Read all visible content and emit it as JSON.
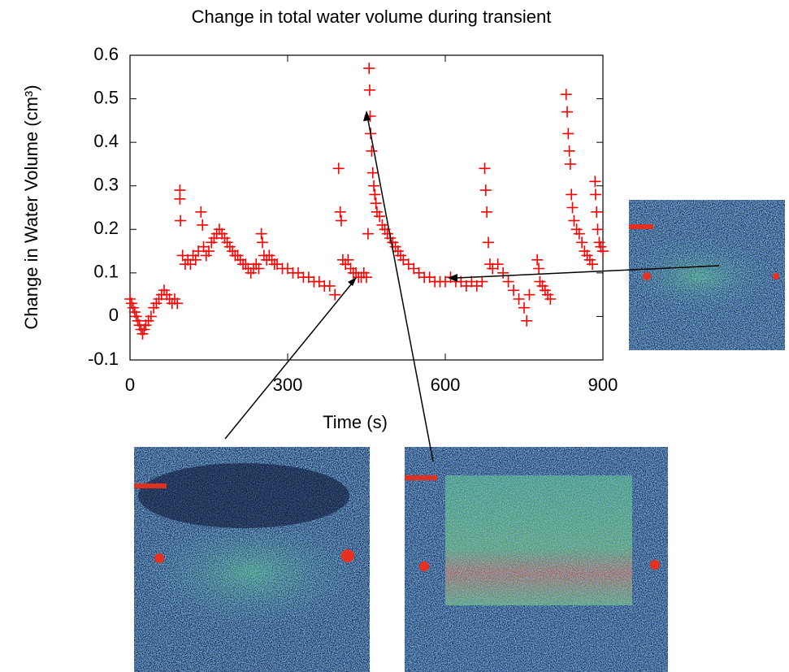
{
  "chart_data": {
    "type": "scatter",
    "title": "Change in total water volume during transient",
    "xlabel": "Time (s)",
    "ylabel": "Change in Water Volume (cm³)",
    "color": "#ff0000",
    "marker": "+",
    "xlim": [
      0,
      900
    ],
    "ylim": [
      -0.1,
      0.6
    ],
    "xticks": [
      0,
      300,
      600,
      900
    ],
    "yticks": [
      -0.1,
      0,
      0.1,
      0.2,
      0.3,
      0.4,
      0.5,
      0.6
    ],
    "x": [
      0,
      3,
      6,
      9,
      12,
      15,
      18,
      21,
      24,
      27,
      30,
      35,
      40,
      45,
      50,
      55,
      60,
      65,
      70,
      75,
      80,
      85,
      90,
      95,
      95,
      96,
      100,
      105,
      110,
      115,
      120,
      125,
      130,
      135,
      138,
      140,
      145,
      150,
      155,
      160,
      165,
      170,
      175,
      180,
      185,
      190,
      195,
      200,
      205,
      210,
      215,
      220,
      225,
      230,
      235,
      240,
      245,
      250,
      252,
      255,
      260,
      265,
      270,
      275,
      280,
      290,
      300,
      310,
      320,
      330,
      340,
      350,
      360,
      370,
      380,
      390,
      397,
      400,
      402,
      405,
      410,
      415,
      420,
      425,
      430,
      435,
      440,
      445,
      450,
      453,
      455,
      456,
      457,
      458,
      460,
      462,
      464,
      466,
      468,
      470,
      475,
      480,
      485,
      490,
      495,
      500,
      505,
      510,
      515,
      520,
      530,
      540,
      550,
      560,
      570,
      580,
      590,
      600,
      610,
      620,
      630,
      640,
      650,
      660,
      670,
      675,
      677,
      679,
      682,
      685,
      690,
      700,
      710,
      720,
      730,
      740,
      750,
      755,
      760,
      775,
      778,
      780,
      785,
      790,
      795,
      800,
      830,
      832,
      834,
      836,
      838,
      840,
      842,
      845,
      850,
      855,
      860,
      865,
      870,
      875,
      880,
      885,
      886,
      888,
      890,
      893,
      896,
      900
    ],
    "values": [
      0.04,
      0.03,
      0.02,
      0.01,
      0.0,
      -0.01,
      -0.02,
      -0.03,
      -0.04,
      -0.03,
      -0.02,
      -0.01,
      0.0,
      0.02,
      0.03,
      0.04,
      0.05,
      0.06,
      0.05,
      0.04,
      0.03,
      0.04,
      0.03,
      0.29,
      0.27,
      0.22,
      0.14,
      0.12,
      0.13,
      0.12,
      0.14,
      0.13,
      0.15,
      0.24,
      0.21,
      0.16,
      0.14,
      0.15,
      0.17,
      0.18,
      0.19,
      0.2,
      0.19,
      0.18,
      0.17,
      0.16,
      0.15,
      0.14,
      0.14,
      0.13,
      0.12,
      0.12,
      0.11,
      0.1,
      0.11,
      0.12,
      0.11,
      0.19,
      0.17,
      0.14,
      0.13,
      0.14,
      0.13,
      0.12,
      0.12,
      0.11,
      0.11,
      0.1,
      0.1,
      0.09,
      0.09,
      0.08,
      0.08,
      0.07,
      0.07,
      0.05,
      0.34,
      0.24,
      0.22,
      0.13,
      0.12,
      0.13,
      0.11,
      0.1,
      0.1,
      0.09,
      0.09,
      0.1,
      0.09,
      0.19,
      0.57,
      0.52,
      0.46,
      0.42,
      0.38,
      0.33,
      0.3,
      0.28,
      0.26,
      0.24,
      0.23,
      0.21,
      0.2,
      0.19,
      0.18,
      0.17,
      0.16,
      0.15,
      0.14,
      0.13,
      0.12,
      0.11,
      0.1,
      0.09,
      0.09,
      0.08,
      0.08,
      0.08,
      0.09,
      0.08,
      0.08,
      0.07,
      0.08,
      0.07,
      0.08,
      0.34,
      0.29,
      0.24,
      0.17,
      0.12,
      0.11,
      0.12,
      0.1,
      0.08,
      0.06,
      0.04,
      0.02,
      -0.01,
      0.05,
      0.13,
      0.11,
      0.08,
      0.07,
      0.06,
      0.05,
      0.04,
      0.51,
      0.47,
      0.42,
      0.38,
      0.35,
      0.28,
      0.25,
      0.22,
      0.2,
      0.19,
      0.17,
      0.15,
      0.14,
      0.13,
      0.12,
      0.31,
      0.28,
      0.24,
      0.2,
      0.17,
      0.16,
      0.15
    ]
  }
}
